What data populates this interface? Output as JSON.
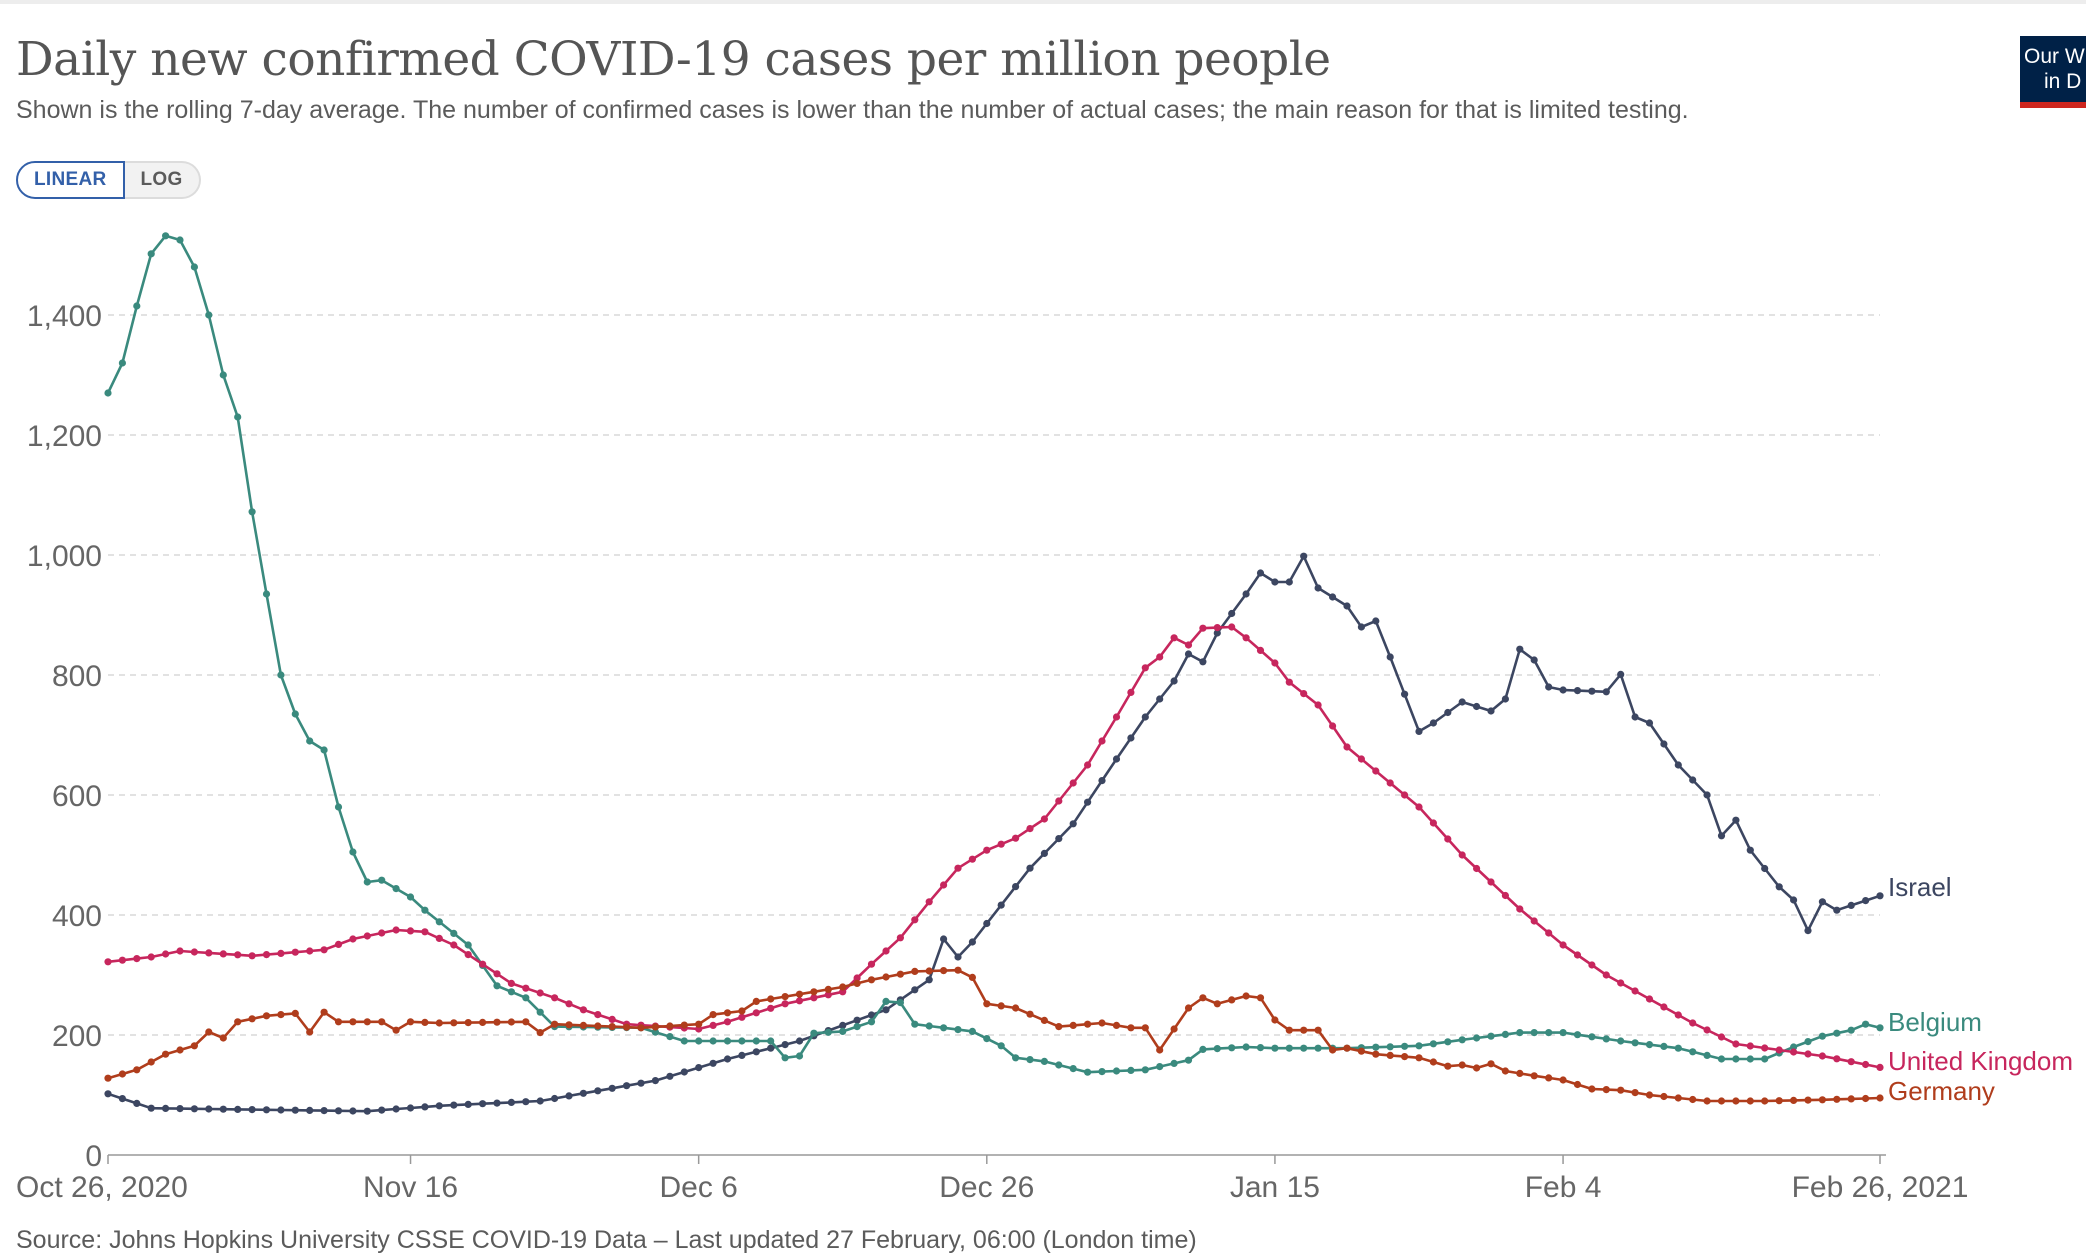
{
  "header": {
    "title": "Daily new confirmed COVID-19 cases per million people",
    "subtitle": "Shown is the rolling 7-day average. The number of confirmed cases is lower than the number of actual cases; the main reason for that is limited testing."
  },
  "controls": {
    "linear_label": "LINEAR",
    "log_label": "LOG",
    "active": "linear"
  },
  "logo": {
    "line1": "Our W",
    "line2": "in D"
  },
  "chart_data": {
    "type": "line",
    "title": "Daily new confirmed COVID-19 cases per million people",
    "subtitle": "Shown is the rolling 7-day average. The number of confirmed cases is lower than the number of actual cases; the main reason for that is limited testing.",
    "x_start": "2020-10-26",
    "x_end": "2021-02-26",
    "x_ticks": [
      "Oct 26, 2020",
      "Nov 16",
      "Dec 6",
      "Dec 26",
      "Jan 15",
      "Feb 4",
      "Feb 26, 2021"
    ],
    "y_ticks": [
      0,
      200,
      400,
      600,
      800,
      1000,
      1200,
      1400
    ],
    "y_tick_labels": [
      "0",
      "200",
      "400",
      "600",
      "800",
      "1,000",
      "1,200",
      "1,400"
    ],
    "ylim": [
      0,
      1530
    ],
    "grid": true,
    "legend": "inline-right",
    "series": [
      {
        "name": "Israel",
        "color": "#3c4661",
        "knots": [
          [
            "2020-10-26",
            102
          ],
          [
            "2020-10-29",
            78
          ],
          [
            "2020-11-13",
            73
          ],
          [
            "2020-11-18",
            82
          ],
          [
            "2020-11-25",
            90
          ],
          [
            "2020-12-03",
            124
          ],
          [
            "2020-12-08",
            160
          ],
          [
            "2020-12-13",
            190
          ],
          [
            "2020-12-19",
            242
          ],
          [
            "2020-12-22",
            292
          ],
          [
            "2020-12-23",
            360
          ],
          [
            "2020-12-24",
            330
          ],
          [
            "2020-12-25",
            355
          ],
          [
            "2020-12-29",
            478
          ],
          [
            "2021-01-01",
            552
          ],
          [
            "2021-01-04",
            660
          ],
          [
            "2021-01-06",
            730
          ],
          [
            "2021-01-08",
            790
          ],
          [
            "2021-01-09",
            835
          ],
          [
            "2021-01-10",
            822
          ],
          [
            "2021-01-11",
            870
          ],
          [
            "2021-01-13",
            935
          ],
          [
            "2021-01-14",
            970
          ],
          [
            "2021-01-15",
            955
          ],
          [
            "2021-01-16",
            955
          ],
          [
            "2021-01-17",
            998
          ],
          [
            "2021-01-18",
            945
          ],
          [
            "2021-01-20",
            915
          ],
          [
            "2021-01-21",
            880
          ],
          [
            "2021-01-22",
            890
          ],
          [
            "2021-01-23",
            830
          ],
          [
            "2021-01-25",
            706
          ],
          [
            "2021-01-26",
            720
          ],
          [
            "2021-01-28",
            755
          ],
          [
            "2021-01-30",
            740
          ],
          [
            "2021-01-31",
            760
          ],
          [
            "2021-02-01",
            843
          ],
          [
            "2021-02-02",
            825
          ],
          [
            "2021-02-03",
            780
          ],
          [
            "2021-02-04",
            775
          ],
          [
            "2021-02-07",
            772
          ],
          [
            "2021-02-08",
            801
          ],
          [
            "2021-02-09",
            730
          ],
          [
            "2021-02-10",
            720
          ],
          [
            "2021-02-12",
            650
          ],
          [
            "2021-02-14",
            600
          ],
          [
            "2021-02-15",
            532
          ],
          [
            "2021-02-16",
            558
          ],
          [
            "2021-02-17",
            508
          ],
          [
            "2021-02-19",
            447
          ],
          [
            "2021-02-20",
            425
          ],
          [
            "2021-02-21",
            374
          ],
          [
            "2021-02-22",
            422
          ],
          [
            "2021-02-23",
            408
          ],
          [
            "2021-02-26",
            432
          ]
        ]
      },
      {
        "name": "Belgium",
        "color": "#3a8a7e",
        "knots": [
          [
            "2020-10-26",
            1270
          ],
          [
            "2020-10-27",
            1320
          ],
          [
            "2020-10-28",
            1415
          ],
          [
            "2020-10-29",
            1502
          ],
          [
            "2020-10-30",
            1532
          ],
          [
            "2020-10-31",
            1525
          ],
          [
            "2020-11-01",
            1480
          ],
          [
            "2020-11-02",
            1400
          ],
          [
            "2020-11-03",
            1300
          ],
          [
            "2020-11-04",
            1230
          ],
          [
            "2020-11-05",
            1072
          ],
          [
            "2020-11-06",
            935
          ],
          [
            "2020-11-07",
            800
          ],
          [
            "2020-11-08",
            735
          ],
          [
            "2020-11-09",
            690
          ],
          [
            "2020-11-10",
            675
          ],
          [
            "2020-11-11",
            580
          ],
          [
            "2020-11-12",
            505
          ],
          [
            "2020-11-13",
            455
          ],
          [
            "2020-11-14",
            458
          ],
          [
            "2020-11-16",
            430
          ],
          [
            "2020-11-17",
            408
          ],
          [
            "2020-11-20",
            350
          ],
          [
            "2020-11-22",
            282
          ],
          [
            "2020-11-24",
            262
          ],
          [
            "2020-11-26",
            214
          ],
          [
            "2020-12-02",
            212
          ],
          [
            "2020-12-05",
            190
          ],
          [
            "2020-12-11",
            190
          ],
          [
            "2020-12-12",
            162
          ],
          [
            "2020-12-13",
            165
          ],
          [
            "2020-12-14",
            203
          ],
          [
            "2020-12-16",
            206
          ],
          [
            "2020-12-18",
            222
          ],
          [
            "2020-12-19",
            256
          ],
          [
            "2020-12-20",
            254
          ],
          [
            "2020-12-21",
            218
          ],
          [
            "2020-12-25",
            206
          ],
          [
            "2020-12-27",
            182
          ],
          [
            "2020-12-28",
            162
          ],
          [
            "2020-12-30",
            156
          ],
          [
            "2021-01-02",
            138
          ],
          [
            "2021-01-06",
            142
          ],
          [
            "2021-01-09",
            158
          ],
          [
            "2021-01-10",
            176
          ],
          [
            "2021-01-13",
            180
          ],
          [
            "2021-01-15",
            178
          ],
          [
            "2021-01-20",
            178
          ],
          [
            "2021-01-25",
            182
          ],
          [
            "2021-01-28",
            192
          ],
          [
            "2021-02-01",
            204
          ],
          [
            "2021-02-04",
            204
          ],
          [
            "2021-02-08",
            190
          ],
          [
            "2021-02-12",
            178
          ],
          [
            "2021-02-15",
            160
          ],
          [
            "2021-02-18",
            160
          ],
          [
            "2021-02-20",
            180
          ],
          [
            "2021-02-22",
            198
          ],
          [
            "2021-02-24",
            208
          ],
          [
            "2021-02-25",
            218
          ],
          [
            "2021-02-26",
            212
          ]
        ]
      },
      {
        "name": "United Kingdom",
        "color": "#c7265d",
        "knots": [
          [
            "2020-10-26",
            322
          ],
          [
            "2020-10-29",
            330
          ],
          [
            "2020-10-31",
            340
          ],
          [
            "2020-11-05",
            332
          ],
          [
            "2020-11-10",
            342
          ],
          [
            "2020-11-12",
            360
          ],
          [
            "2020-11-15",
            375
          ],
          [
            "2020-11-17",
            372
          ],
          [
            "2020-11-19",
            350
          ],
          [
            "2020-11-21",
            318
          ],
          [
            "2020-11-23",
            286
          ],
          [
            "2020-11-26",
            262
          ],
          [
            "2020-11-28",
            242
          ],
          [
            "2020-12-01",
            218
          ],
          [
            "2020-12-06",
            210
          ],
          [
            "2020-12-08",
            222
          ],
          [
            "2020-12-12",
            252
          ],
          [
            "2020-12-16",
            272
          ],
          [
            "2020-12-18",
            318
          ],
          [
            "2020-12-20",
            362
          ],
          [
            "2020-12-22",
            422
          ],
          [
            "2020-12-24",
            478
          ],
          [
            "2020-12-26",
            508
          ],
          [
            "2020-12-28",
            528
          ],
          [
            "2020-12-30",
            560
          ],
          [
            "2021-01-02",
            650
          ],
          [
            "2021-01-04",
            730
          ],
          [
            "2021-01-06",
            812
          ],
          [
            "2021-01-07",
            830
          ],
          [
            "2021-01-08",
            862
          ],
          [
            "2021-01-09",
            850
          ],
          [
            "2021-01-10",
            878
          ],
          [
            "2021-01-12",
            880
          ],
          [
            "2021-01-13",
            862
          ],
          [
            "2021-01-15",
            820
          ],
          [
            "2021-01-16",
            788
          ],
          [
            "2021-01-18",
            750
          ],
          [
            "2021-01-20",
            680
          ],
          [
            "2021-01-22",
            640
          ],
          [
            "2021-01-25",
            580
          ],
          [
            "2021-01-28",
            500
          ],
          [
            "2021-02-01",
            410
          ],
          [
            "2021-02-04",
            350
          ],
          [
            "2021-02-07",
            300
          ],
          [
            "2021-02-10",
            260
          ],
          [
            "2021-02-13",
            220
          ],
          [
            "2021-02-16",
            185
          ],
          [
            "2021-02-19",
            175
          ],
          [
            "2021-02-22",
            165
          ],
          [
            "2021-02-26",
            146
          ]
        ]
      },
      {
        "name": "Germany",
        "color": "#b03d1c",
        "knots": [
          [
            "2020-10-26",
            128
          ],
          [
            "2020-10-27",
            135
          ],
          [
            "2020-10-28",
            142
          ],
          [
            "2020-10-30",
            168
          ],
          [
            "2020-11-01",
            182
          ],
          [
            "2020-11-02",
            205
          ],
          [
            "2020-11-03",
            195
          ],
          [
            "2020-11-04",
            222
          ],
          [
            "2020-11-06",
            232
          ],
          [
            "2020-11-08",
            236
          ],
          [
            "2020-11-09",
            205
          ],
          [
            "2020-11-10",
            238
          ],
          [
            "2020-11-11",
            222
          ],
          [
            "2020-11-14",
            222
          ],
          [
            "2020-11-15",
            208
          ],
          [
            "2020-11-16",
            222
          ],
          [
            "2020-11-18",
            220
          ],
          [
            "2020-11-24",
            222
          ],
          [
            "2020-11-25",
            204
          ],
          [
            "2020-11-26",
            218
          ],
          [
            "2020-12-02",
            212
          ],
          [
            "2020-12-06",
            218
          ],
          [
            "2020-12-07",
            234
          ],
          [
            "2020-12-09",
            240
          ],
          [
            "2020-12-10",
            256
          ],
          [
            "2020-12-13",
            268
          ],
          [
            "2020-12-16",
            280
          ],
          [
            "2020-12-18",
            292
          ],
          [
            "2020-12-21",
            306
          ],
          [
            "2020-12-24",
            308
          ],
          [
            "2020-12-25",
            296
          ],
          [
            "2020-12-26",
            252
          ],
          [
            "2020-12-28",
            245
          ],
          [
            "2020-12-31",
            214
          ],
          [
            "2021-01-01",
            216
          ],
          [
            "2021-01-03",
            220
          ],
          [
            "2021-01-05",
            212
          ],
          [
            "2021-01-06",
            212
          ],
          [
            "2021-01-07",
            175
          ],
          [
            "2021-01-08",
            210
          ],
          [
            "2021-01-09",
            245
          ],
          [
            "2021-01-10",
            262
          ],
          [
            "2021-01-11",
            252
          ],
          [
            "2021-01-13",
            265
          ],
          [
            "2021-01-14",
            262
          ],
          [
            "2021-01-15",
            225
          ],
          [
            "2021-01-16",
            208
          ],
          [
            "2021-01-18",
            208
          ],
          [
            "2021-01-19",
            175
          ],
          [
            "2021-01-20",
            178
          ],
          [
            "2021-01-22",
            168
          ],
          [
            "2021-01-25",
            162
          ],
          [
            "2021-01-27",
            148
          ],
          [
            "2021-01-28",
            150
          ],
          [
            "2021-01-29",
            145
          ],
          [
            "2021-01-30",
            152
          ],
          [
            "2021-01-31",
            140
          ],
          [
            "2021-02-02",
            132
          ],
          [
            "2021-02-04",
            125
          ],
          [
            "2021-02-06",
            110
          ],
          [
            "2021-02-08",
            108
          ],
          [
            "2021-02-10",
            100
          ],
          [
            "2021-02-12",
            95
          ],
          [
            "2021-02-14",
            90
          ],
          [
            "2021-02-18",
            90
          ],
          [
            "2021-02-22",
            92
          ],
          [
            "2021-02-26",
            95
          ]
        ]
      }
    ]
  },
  "footer": {
    "source": "Source: Johns Hopkins University CSSE COVID-19 Data – Last updated 27 February, 06:00 (London time)"
  }
}
